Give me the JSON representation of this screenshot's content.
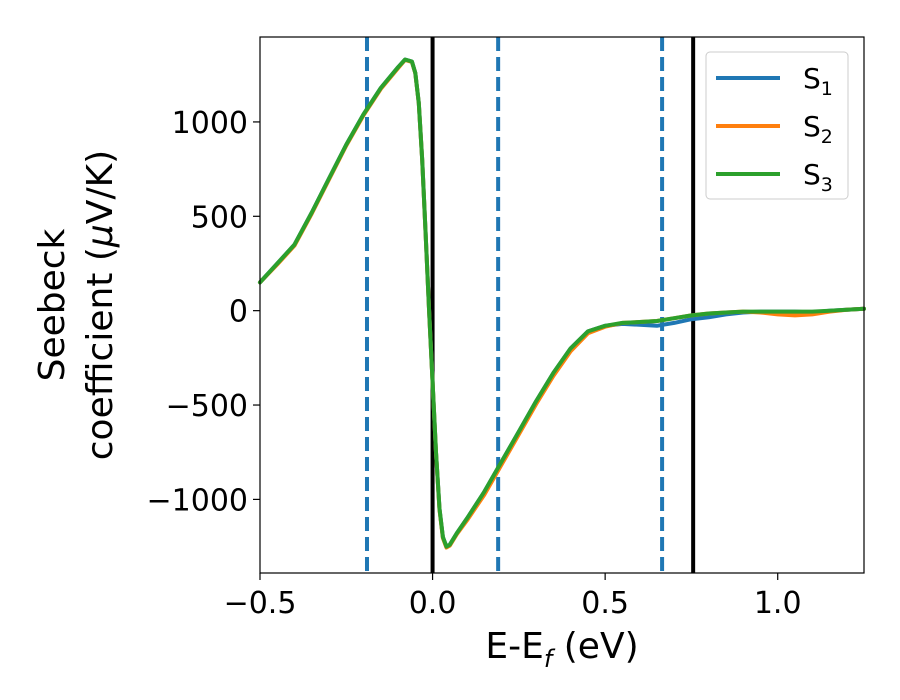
{
  "chart_data": {
    "type": "line",
    "xlabel": {
      "main": "E-E",
      "sub": "f",
      "tail": " (eV)"
    },
    "ylabel": {
      "line1": "Seebeck",
      "line2_pre": "coefficient  (",
      "mu": "μ",
      "line2_post": "V/K)"
    },
    "xlim": [
      -0.5,
      1.25
    ],
    "ylim": [
      -1390,
      1450
    ],
    "xticks": [
      {
        "value": -0.5,
        "label": "−0.5"
      },
      {
        "value": 0.0,
        "label": "0.0"
      },
      {
        "value": 0.5,
        "label": "0.5"
      },
      {
        "value": 1.0,
        "label": "1.0"
      }
    ],
    "yticks": [
      {
        "value": 1000,
        "label": "1000"
      },
      {
        "value": 500,
        "label": "500"
      },
      {
        "value": 0,
        "label": "0"
      },
      {
        "value": -500,
        "label": "−500"
      },
      {
        "value": -1000,
        "label": "−1000"
      }
    ],
    "vlines_dashed": [
      -0.19,
      0.19,
      0.665
    ],
    "vlines_solid": [
      0.0,
      0.755
    ],
    "legend_position": "top-right",
    "grid": false,
    "series": [
      {
        "name": "S",
        "sub": "1",
        "color": "#1f77b4",
        "x": [
          -0.5,
          -0.45,
          -0.4,
          -0.35,
          -0.3,
          -0.25,
          -0.2,
          -0.15,
          -0.1,
          -0.08,
          -0.06,
          -0.05,
          -0.04,
          -0.03,
          -0.02,
          -0.01,
          0.0,
          0.01,
          0.02,
          0.03,
          0.04,
          0.05,
          0.07,
          0.1,
          0.15,
          0.2,
          0.25,
          0.3,
          0.35,
          0.4,
          0.45,
          0.5,
          0.55,
          0.6,
          0.65,
          0.7,
          0.75,
          0.8,
          0.85,
          0.9,
          0.95,
          1.0,
          1.05,
          1.1,
          1.15,
          1.2,
          1.25
        ],
        "y": [
          150,
          250,
          350,
          520,
          700,
          880,
          1040,
          1180,
          1290,
          1330,
          1320,
          1260,
          1100,
          800,
          400,
          0,
          -380,
          -750,
          -1050,
          -1200,
          -1250,
          -1240,
          -1180,
          -1100,
          -960,
          -800,
          -640,
          -480,
          -330,
          -200,
          -110,
          -80,
          -70,
          -75,
          -80,
          -65,
          -45,
          -35,
          -20,
          -10,
          -5,
          -5,
          -5,
          -10,
          0,
          5,
          10
        ]
      },
      {
        "name": "S",
        "sub": "2",
        "color": "#ff7f0e",
        "x": [
          -0.5,
          -0.45,
          -0.4,
          -0.35,
          -0.3,
          -0.25,
          -0.2,
          -0.15,
          -0.1,
          -0.08,
          -0.06,
          -0.05,
          -0.04,
          -0.03,
          -0.02,
          -0.01,
          0.0,
          0.01,
          0.02,
          0.03,
          0.04,
          0.05,
          0.07,
          0.1,
          0.15,
          0.2,
          0.25,
          0.3,
          0.35,
          0.4,
          0.45,
          0.5,
          0.55,
          0.6,
          0.65,
          0.7,
          0.75,
          0.8,
          0.85,
          0.9,
          0.95,
          1.0,
          1.05,
          1.1,
          1.15,
          1.2,
          1.25
        ],
        "y": [
          150,
          245,
          345,
          515,
          695,
          875,
          1035,
          1175,
          1285,
          1328,
          1318,
          1258,
          1098,
          798,
          398,
          -2,
          -382,
          -752,
          -1055,
          -1205,
          -1255,
          -1245,
          -1185,
          -1110,
          -975,
          -815,
          -655,
          -495,
          -345,
          -215,
          -120,
          -85,
          -65,
          -60,
          -55,
          -40,
          -25,
          -15,
          -10,
          -5,
          -10,
          -20,
          -25,
          -20,
          -5,
          5,
          10
        ]
      },
      {
        "name": "S",
        "sub": "3",
        "color": "#2ca02c",
        "x": [
          -0.5,
          -0.45,
          -0.4,
          -0.35,
          -0.3,
          -0.25,
          -0.2,
          -0.15,
          -0.1,
          -0.08,
          -0.06,
          -0.05,
          -0.04,
          -0.03,
          -0.02,
          -0.01,
          0.0,
          0.01,
          0.02,
          0.03,
          0.04,
          0.05,
          0.07,
          0.1,
          0.15,
          0.2,
          0.25,
          0.3,
          0.35,
          0.4,
          0.45,
          0.5,
          0.55,
          0.6,
          0.65,
          0.7,
          0.75,
          0.8,
          0.85,
          0.9,
          0.95,
          1.0,
          1.05,
          1.1,
          1.15,
          1.2,
          1.25
        ],
        "y": [
          150,
          250,
          350,
          520,
          700,
          880,
          1040,
          1180,
          1290,
          1330,
          1320,
          1260,
          1100,
          800,
          400,
          0,
          -380,
          -750,
          -1050,
          -1200,
          -1250,
          -1240,
          -1180,
          -1100,
          -960,
          -800,
          -640,
          -480,
          -330,
          -200,
          -110,
          -80,
          -65,
          -60,
          -55,
          -40,
          -25,
          -15,
          -10,
          -5,
          -5,
          -5,
          -5,
          -5,
          0,
          5,
          10
        ]
      }
    ]
  }
}
